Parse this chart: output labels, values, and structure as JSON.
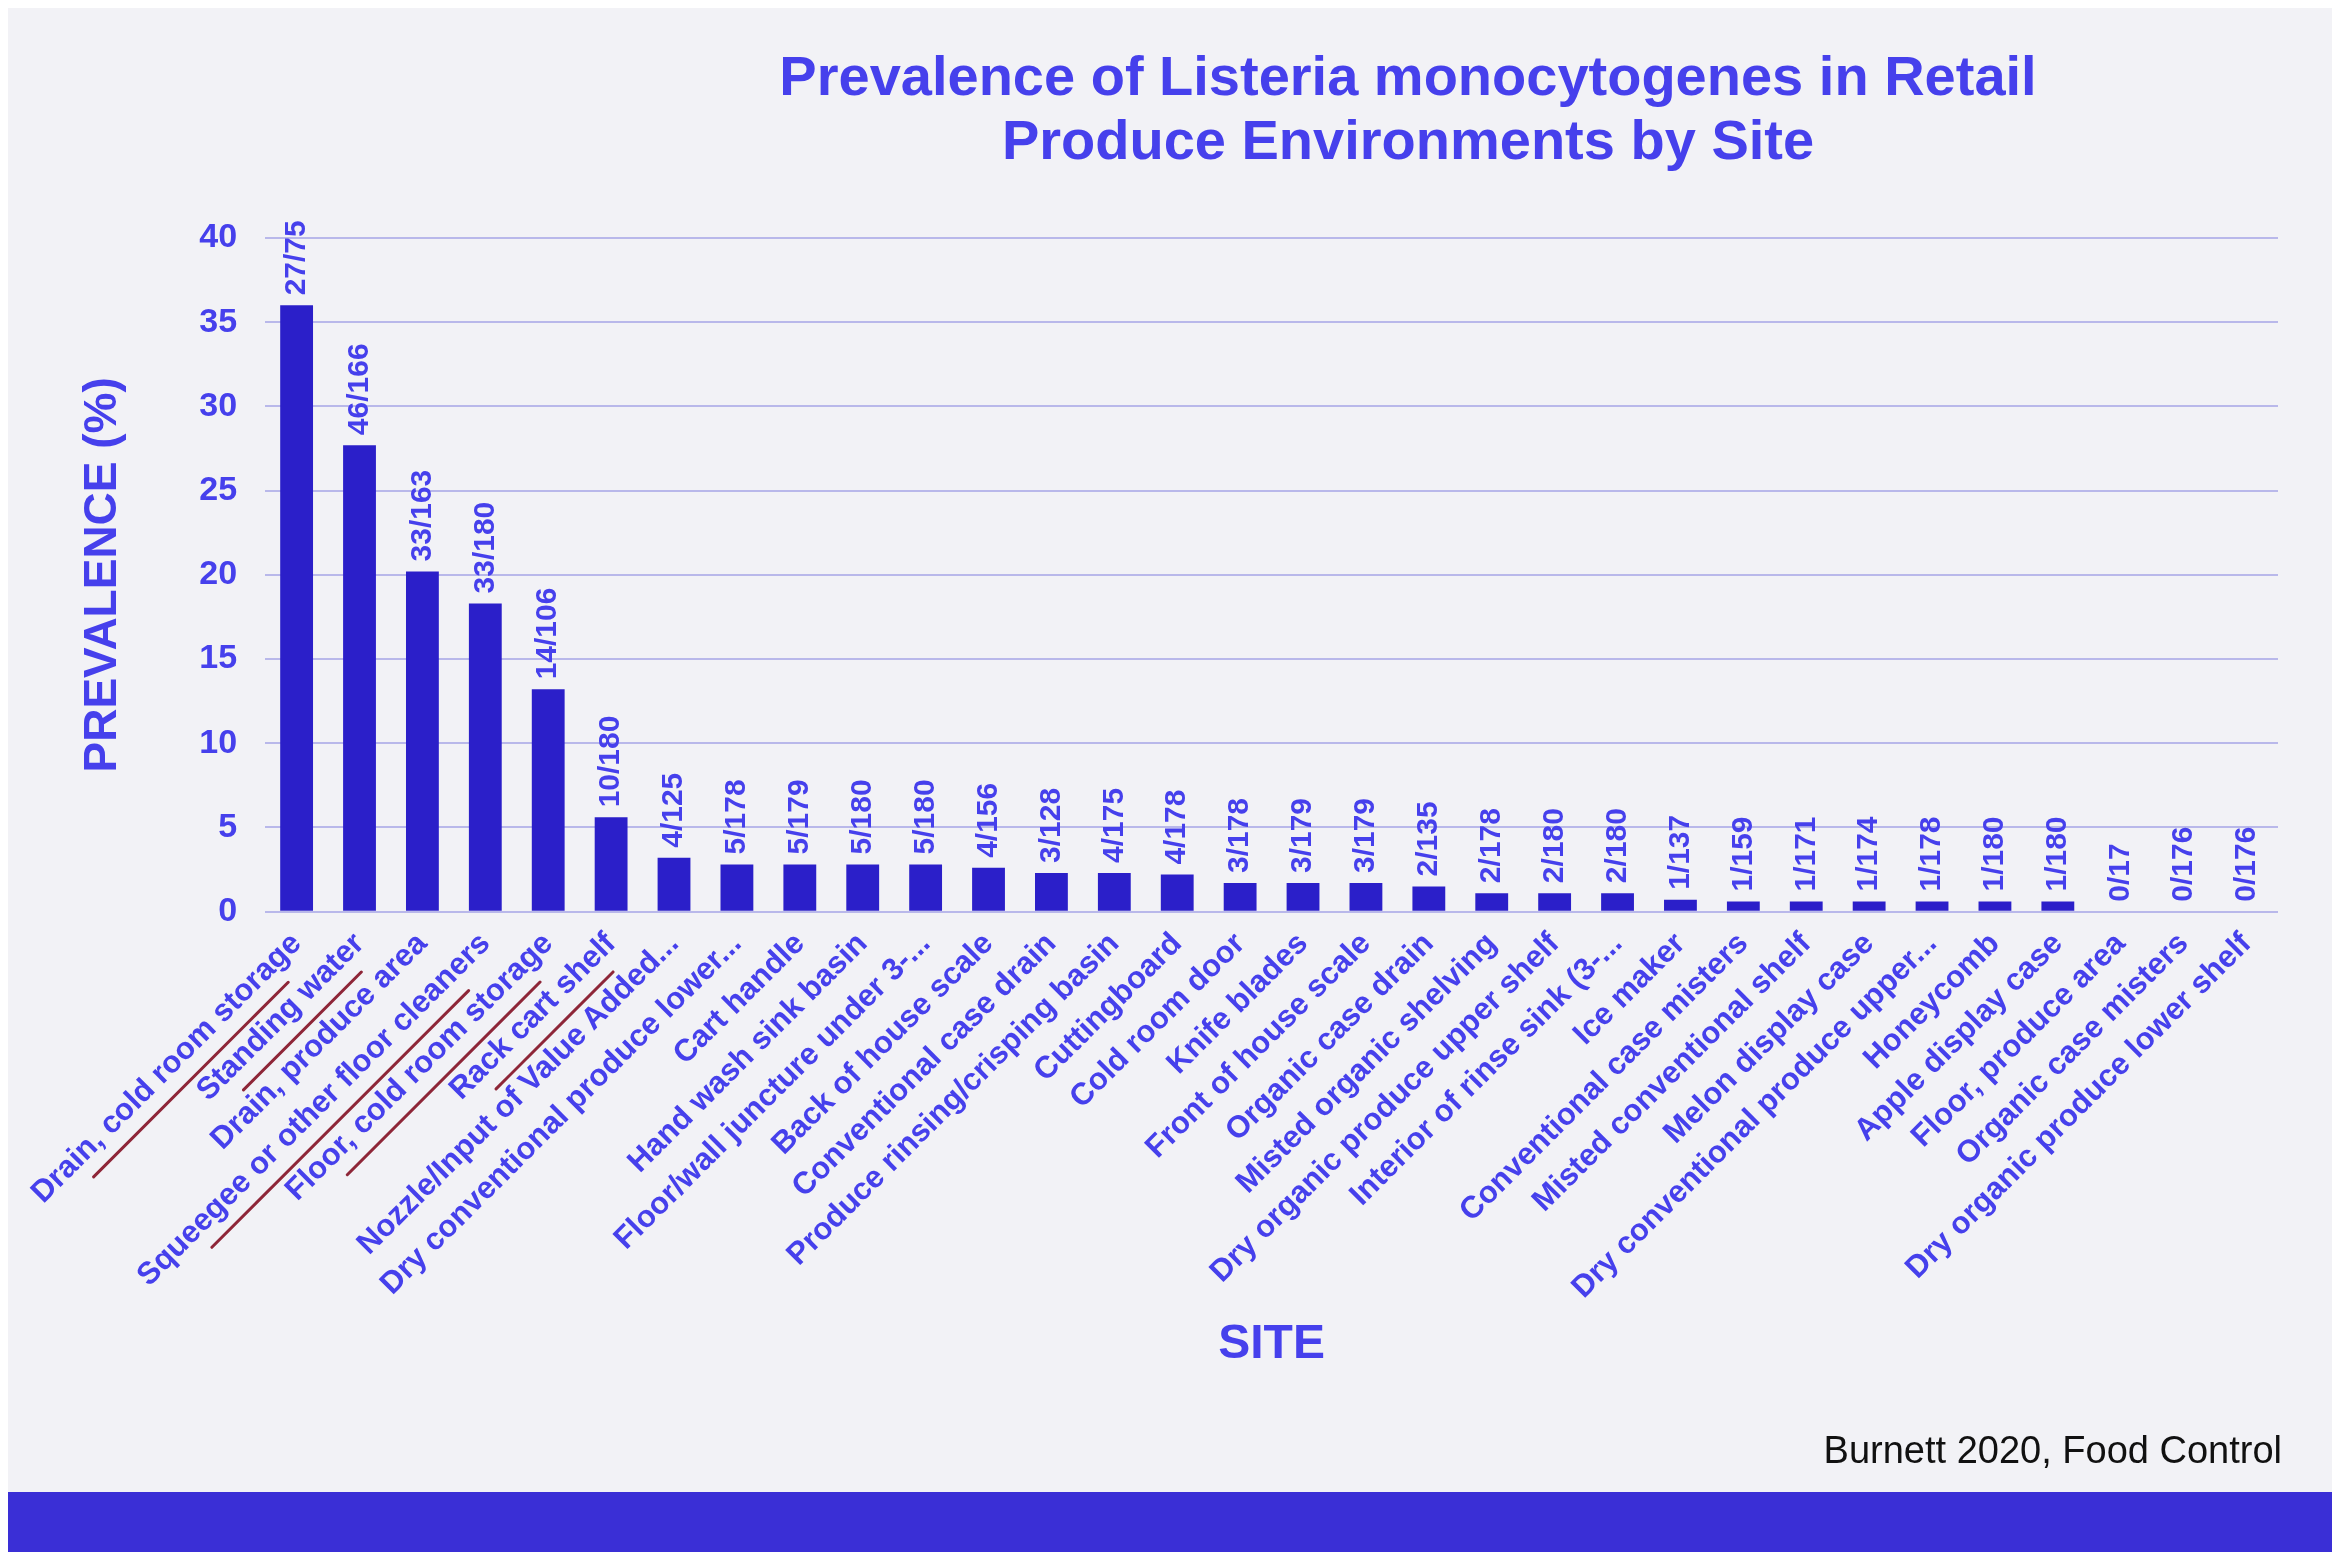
{
  "chart_data": {
    "type": "bar",
    "title": "Prevalence of Listeria monocytogenes in Retail Produce Environments by Site",
    "xlabel": "SITE",
    "ylabel": "PREVALENCE (%)",
    "categories": [
      "Drain, cold room storage",
      "Standing water",
      "Drain, produce area",
      "Squeegee or other floor cleaners",
      "Floor, cold room storage",
      "Rack cart shelf",
      "Nozzle/Input of Value Added...",
      "Dry conventional produce lower...",
      "Cart handle",
      "Hand wash sink basin",
      "Floor/wall juncture under 3-...",
      "Back of house scale",
      "Conventional case drain",
      "Produce rinsing/crisping basin",
      "Cuttingboard",
      "Cold room door",
      "Knife blades",
      "Front of house scale",
      "Organic case drain",
      "Misted organic shelving",
      "Dry organic produce upper shelf",
      "Interior of rinse sink (3-...",
      "Ice maker",
      "Conventional case misters",
      "Misted conventional shelf",
      "Melon display case",
      "Dry conventional produce upper...",
      "Honeycomb",
      "Apple display case",
      "Floor, produce area",
      "Organic case misters",
      "Dry organic produce lower shelf"
    ],
    "values": [
      36.0,
      27.7,
      20.2,
      18.3,
      13.2,
      5.6,
      3.2,
      2.8,
      2.8,
      2.8,
      2.8,
      2.6,
      2.3,
      2.3,
      2.2,
      1.7,
      1.7,
      1.7,
      1.5,
      1.1,
      1.1,
      1.1,
      0.7,
      0.6,
      0.6,
      0.6,
      0.6,
      0.6,
      0.6,
      0,
      0,
      0
    ],
    "value_labels": [
      "27/75",
      "46/166",
      "33/163",
      "33/180",
      "14/106",
      "10/180",
      "4/125",
      "5/178",
      "5/179",
      "5/180",
      "5/180",
      "4/156",
      "3/128",
      "4/175",
      "4/178",
      "3/178",
      "3/179",
      "3/179",
      "2/135",
      "2/178",
      "2/180",
      "2/180",
      "1/137",
      "1/159",
      "1/171",
      "1/174",
      "1/178",
      "1/180",
      "1/180",
      "0/17",
      "0/176",
      "0/176"
    ],
    "color": "#2b1fc9",
    "ylim": [
      0,
      40
    ],
    "yticks": [
      0,
      5,
      10,
      15,
      20,
      25,
      30,
      35,
      40
    ],
    "grid": "y",
    "annotations": [
      "Burnett 2020, Food Control"
    ]
  }
}
